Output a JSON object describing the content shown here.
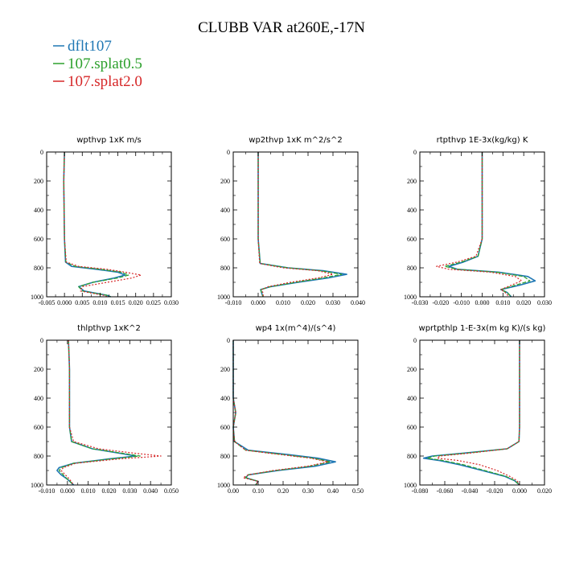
{
  "title": "CLUBB VAR at260E,-17N",
  "legend": [
    {
      "label": "dflt107",
      "color": "#1f77b4"
    },
    {
      "label": "107.splat0.5",
      "color": "#2ca02c"
    },
    {
      "label": "107.splat2.0",
      "color": "#d62728"
    }
  ],
  "chart_data": [
    {
      "type": "line",
      "title": "wpthvp  1xK m/s",
      "xlim": [
        -0.005,
        0.03
      ],
      "xticks": [
        "-0.005",
        "0.000",
        "0.005",
        "0.010",
        "0.015",
        "0.020",
        "0.025",
        "0.030"
      ],
      "ylim": [
        1000,
        0
      ],
      "yticks": [
        "0",
        "200",
        "400",
        "600",
        "800",
        "1000"
      ],
      "y": [
        0,
        200,
        400,
        600,
        760,
        790,
        810,
        830,
        850,
        870,
        900,
        930,
        960,
        990,
        1000
      ],
      "series": [
        {
          "name": "dflt107",
          "values": [
            0.0,
            -0.0002,
            -0.0001,
            0.0,
            0.0003,
            0.002,
            0.009,
            0.015,
            0.017,
            0.014,
            0.008,
            0.004,
            0.0055,
            0.012,
            0.013
          ]
        },
        {
          "name": "107.splat0.5",
          "values": [
            0.0,
            -0.0002,
            -0.0001,
            0.0,
            0.0004,
            0.003,
            0.01,
            0.016,
            0.018,
            0.015,
            0.008,
            0.004,
            0.005,
            0.012,
            0.013
          ]
        },
        {
          "name": "107.splat2.0",
          "values": [
            0.0,
            -0.0002,
            -0.0001,
            0.0,
            0.0005,
            0.004,
            0.012,
            0.017,
            0.0215,
            0.019,
            0.012,
            0.005,
            0.0045,
            0.011,
            0.012
          ]
        }
      ]
    },
    {
      "type": "line",
      "title": "wp2thvp  1xK m^2/s^2",
      "xlim": [
        -0.01,
        0.04
      ],
      "xticks": [
        "-0.010",
        "0.000",
        "0.010",
        "0.020",
        "0.030",
        "0.040"
      ],
      "ylim": [
        1000,
        0
      ],
      "yticks": [
        "0",
        "200",
        "400",
        "600",
        "800",
        "1000"
      ],
      "y": [
        0,
        200,
        400,
        600,
        770,
        800,
        820,
        845,
        870,
        900,
        930,
        950,
        980,
        1000
      ],
      "series": [
        {
          "name": "dflt107",
          "values": [
            0.0,
            0.0,
            0.0,
            0.0,
            0.0008,
            0.012,
            0.026,
            0.0355,
            0.028,
            0.016,
            0.005,
            0.001,
            0.0015,
            0.002
          ]
        },
        {
          "name": "107.splat0.5",
          "values": [
            0.0,
            0.0,
            0.0,
            0.0,
            0.0008,
            0.012,
            0.025,
            0.0335,
            0.026,
            0.015,
            0.005,
            0.001,
            0.0015,
            0.002
          ]
        },
        {
          "name": "107.splat2.0",
          "values": [
            0.0,
            0.0,
            0.0,
            0.0,
            0.0006,
            0.01,
            0.024,
            0.03,
            0.024,
            0.013,
            0.004,
            0.0015,
            0.002,
            0.002
          ]
        }
      ]
    },
    {
      "type": "line",
      "title": "rtpthvp  1E-3x(kg/kg) K",
      "xlim": [
        -0.03,
        0.03
      ],
      "xticks": [
        "-0.030",
        "-0.020",
        "-0.010",
        "0.000",
        "0.010",
        "0.020",
        "0.030"
      ],
      "ylim": [
        1000,
        0
      ],
      "yticks": [
        "0",
        "200",
        "400",
        "600",
        "800",
        "1000"
      ],
      "y": [
        0,
        200,
        400,
        600,
        720,
        760,
        790,
        810,
        830,
        860,
        890,
        920,
        950,
        970,
        1000
      ],
      "series": [
        {
          "name": "dflt107",
          "values": [
            0.0,
            0.0,
            0.0,
            0.0,
            -0.002,
            -0.009,
            -0.016,
            -0.012,
            0.008,
            0.022,
            0.0255,
            0.018,
            0.009,
            0.012,
            0.014
          ]
        },
        {
          "name": "107.splat0.5",
          "values": [
            0.0,
            0.0,
            0.0,
            0.0,
            -0.002,
            -0.01,
            -0.018,
            -0.012,
            0.007,
            0.02,
            0.023,
            0.016,
            0.009,
            0.012,
            0.014
          ]
        },
        {
          "name": "107.splat2.0",
          "values": [
            0.0,
            0.0,
            0.0,
            0.0,
            -0.003,
            -0.012,
            -0.022,
            -0.016,
            0.004,
            0.016,
            0.019,
            0.014,
            0.009,
            0.011,
            0.013
          ]
        }
      ]
    },
    {
      "type": "line",
      "title": "thlpthvp  1xK^2",
      "xlim": [
        -0.01,
        0.05
      ],
      "xticks": [
        "-0.010",
        "0.000",
        "0.010",
        "0.020",
        "0.030",
        "0.040",
        "0.050"
      ],
      "ylim": [
        1000,
        0
      ],
      "yticks": [
        "0",
        "200",
        "400",
        "600",
        "800",
        "1000"
      ],
      "y": [
        0,
        200,
        400,
        600,
        700,
        750,
        780,
        800,
        820,
        850,
        880,
        900,
        930,
        960,
        1000
      ],
      "series": [
        {
          "name": "dflt107",
          "values": [
            0.0005,
            0.001,
            0.001,
            0.001,
            0.002,
            0.012,
            0.025,
            0.033,
            0.02,
            0.003,
            -0.004,
            -0.005,
            -0.003,
            0.0,
            0.003
          ]
        },
        {
          "name": "107.splat0.5",
          "values": [
            0.0005,
            0.001,
            0.001,
            0.001,
            0.002,
            0.012,
            0.026,
            0.035,
            0.021,
            0.003,
            -0.003,
            -0.004,
            -0.002,
            0.0,
            0.003
          ]
        },
        {
          "name": "107.splat2.0",
          "values": [
            0.0005,
            0.001,
            0.001,
            0.001,
            0.003,
            0.015,
            0.032,
            0.045,
            0.025,
            0.004,
            -0.002,
            -0.003,
            -0.001,
            0.001,
            0.003
          ]
        }
      ]
    },
    {
      "type": "line",
      "title": "wp4  1x(m^4)/(s^4)",
      "xlim": [
        0.0,
        0.5
      ],
      "xticks": [
        "0.00",
        "0.10",
        "0.20",
        "0.30",
        "0.40",
        "0.50"
      ],
      "ylim": [
        1000,
        0
      ],
      "yticks": [
        "0",
        "200",
        "400",
        "600",
        "800",
        "1000"
      ],
      "y": [
        0,
        400,
        500,
        600,
        700,
        760,
        790,
        815,
        840,
        870,
        900,
        930,
        950,
        975,
        1000
      ],
      "series": [
        {
          "name": "dflt107",
          "values": [
            0.0,
            0.0,
            0.01,
            0.0,
            0.005,
            0.06,
            0.22,
            0.34,
            0.41,
            0.33,
            0.18,
            0.06,
            0.05,
            0.1,
            0.09
          ]
        },
        {
          "name": "107.splat0.5",
          "values": [
            0.0,
            0.0,
            0.01,
            0.0,
            0.005,
            0.05,
            0.2,
            0.32,
            0.39,
            0.31,
            0.17,
            0.06,
            0.05,
            0.1,
            0.09
          ]
        },
        {
          "name": "107.splat2.0",
          "values": [
            0.0,
            0.0,
            0.01,
            0.0,
            0.005,
            0.05,
            0.19,
            0.31,
            0.38,
            0.3,
            0.16,
            0.06,
            0.04,
            0.1,
            0.09
          ]
        }
      ]
    },
    {
      "type": "line",
      "title": "wprtpthlp  1-E-3x(m kg K)/(s kg)",
      "xlim": [
        -0.08,
        0.02
      ],
      "xticks": [
        "-0.080",
        "-0.060",
        "-0.040",
        "-0.020",
        "0.000",
        "0.020"
      ],
      "ylim": [
        1000,
        0
      ],
      "yticks": [
        "0",
        "200",
        "400",
        "600",
        "800",
        "1000"
      ],
      "y": [
        0,
        200,
        400,
        600,
        700,
        750,
        780,
        800,
        815,
        830,
        860,
        900,
        940,
        970,
        1000
      ],
      "series": [
        {
          "name": "dflt107",
          "values": [
            0.0,
            0.0,
            0.0,
            0.0,
            -0.0005,
            -0.01,
            -0.045,
            -0.07,
            -0.077,
            -0.065,
            -0.048,
            -0.03,
            -0.012,
            -0.004,
            0.0
          ]
        },
        {
          "name": "107.splat0.5",
          "values": [
            0.0,
            0.0,
            0.0,
            0.0,
            -0.0005,
            -0.01,
            -0.043,
            -0.068,
            -0.074,
            -0.062,
            -0.045,
            -0.028,
            -0.011,
            -0.004,
            0.0
          ]
        },
        {
          "name": "107.splat2.0",
          "values": [
            0.0,
            0.0,
            0.0,
            0.0,
            -0.0005,
            -0.01,
            -0.04,
            -0.064,
            -0.066,
            -0.05,
            -0.032,
            -0.018,
            -0.008,
            -0.002,
            0.0
          ]
        }
      ]
    }
  ]
}
